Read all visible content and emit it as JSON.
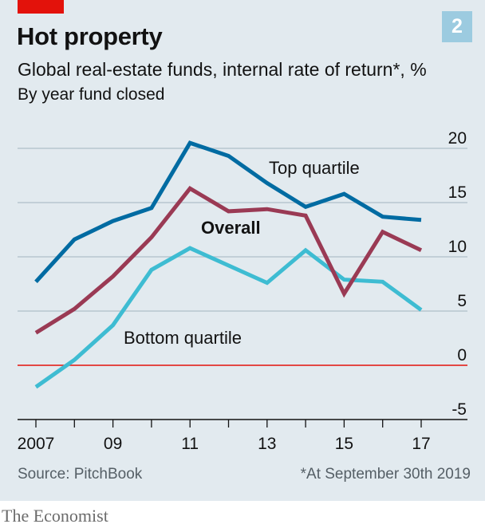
{
  "chart_number": "2",
  "chart_data": {
    "type": "line",
    "title": "Hot property",
    "subtitle": "Global real-estate funds, internal rate of return*, %",
    "note": "By year fund closed",
    "x": [
      2007,
      2008,
      2009,
      2010,
      2011,
      2012,
      2013,
      2014,
      2015,
      2016,
      2017
    ],
    "x_tick_labels": [
      "2007",
      "09",
      "11",
      "13",
      "15",
      "17"
    ],
    "x_tick_values": [
      2007,
      2009,
      2011,
      2013,
      2015,
      2017
    ],
    "xlim": [
      2007,
      2017
    ],
    "ylim": [
      -5,
      20
    ],
    "y_ticks": [
      -5,
      0,
      5,
      10,
      15,
      20
    ],
    "y_tick_labels": [
      "-5",
      "0",
      "5",
      "10",
      "15",
      "20"
    ],
    "grid": true,
    "zero_line_color": "#e3120b",
    "series": [
      {
        "name": "Top quartile",
        "color": "#006ba2",
        "values": [
          7.7,
          11.6,
          13.3,
          14.5,
          20.5,
          19.3,
          16.8,
          14.6,
          15.8,
          13.7,
          13.4
        ]
      },
      {
        "name": "Overall",
        "color": "#9a3a54",
        "values": [
          3.0,
          5.2,
          8.2,
          11.8,
          16.3,
          14.2,
          14.4,
          13.8,
          6.6,
          12.3,
          10.6
        ]
      },
      {
        "name": "Bottom quartile",
        "color": "#3ebcd2",
        "values": [
          -2.0,
          0.5,
          3.7,
          8.8,
          10.8,
          9.2,
          7.6,
          10.6,
          7.9,
          7.7,
          5.1
        ]
      }
    ]
  },
  "source": "Source: PitchBook",
  "footnote": "*At September 30th 2019",
  "brand": "The Economist"
}
